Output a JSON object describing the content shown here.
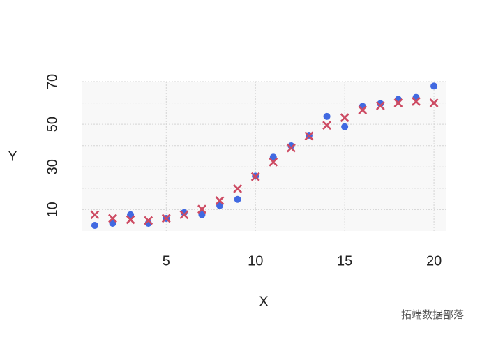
{
  "chart_data": {
    "type": "scatter",
    "x_label": "X",
    "y_label": "Y",
    "x": [
      1,
      2,
      3,
      4,
      5,
      6,
      7,
      8,
      9,
      10,
      11,
      12,
      13,
      14,
      15,
      16,
      17,
      18,
      19,
      20
    ],
    "series": [
      {
        "color": "#4169e1",
        "marker": "circle",
        "values": [
          2.6,
          3.6,
          7.6,
          3.6,
          5.9,
          8.6,
          7.6,
          11.9,
          14.8,
          25.7,
          34.6,
          39.9,
          44.8,
          53.7,
          48.8,
          58.4,
          59.7,
          61.7,
          62.6,
          67.9
        ]
      },
      {
        "color": "#cd4b63",
        "marker": "x",
        "values": [
          7.6,
          5.9,
          5.3,
          4.9,
          5.9,
          7.6,
          10.2,
          14.2,
          19.8,
          25.4,
          32.3,
          38.9,
          44.5,
          49.5,
          53.1,
          56.7,
          58.7,
          60.0,
          60.7,
          60.0
        ]
      }
    ],
    "xlim": [
      0.3,
      20.7
    ],
    "xticks": [
      5,
      10,
      15,
      20
    ],
    "ylim": [
      0,
      70
    ],
    "yticks": [
      10,
      30,
      50,
      70
    ],
    "yminor": [
      20,
      40,
      60
    ],
    "grid": true,
    "watermark": "拓端数据部落"
  }
}
